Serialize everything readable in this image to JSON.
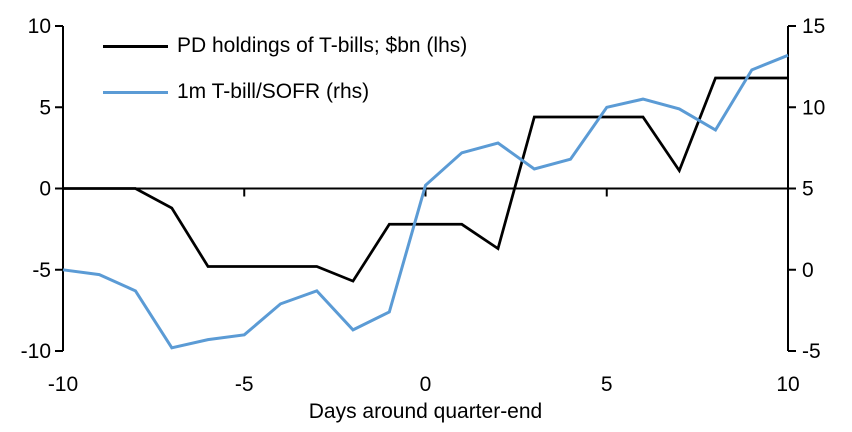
{
  "chart_data": {
    "type": "line",
    "title": "",
    "xlabel": "Days around quarter-end",
    "x": [
      -10,
      -9,
      -8,
      -7,
      -6,
      -5,
      -4,
      -3,
      -2,
      -1,
      0,
      1,
      2,
      3,
      4,
      5,
      6,
      7,
      8,
      9,
      10
    ],
    "series": [
      {
        "name": "PD holdings of T-bills; $bn (lhs)",
        "axis": "lhs",
        "color": "#000000",
        "stroke_width": 2.75,
        "values": [
          0,
          0,
          0,
          -1.2,
          -4.8,
          -4.8,
          -4.8,
          -4.8,
          -5.7,
          -2.2,
          -2.2,
          -2.2,
          -3.7,
          4.4,
          4.4,
          4.4,
          4.4,
          1.1,
          6.8,
          6.8,
          6.8
        ]
      },
      {
        "name": "1m T-bill/SOFR (rhs)",
        "axis": "rhs",
        "color": "#5B9BD5",
        "stroke_width": 3,
        "values": [
          0,
          -0.3,
          -1.3,
          -4.8,
          -4.3,
          -4.0,
          -2.1,
          -1.3,
          -3.7,
          -2.6,
          5.2,
          7.2,
          7.8,
          6.2,
          6.8,
          10.0,
          10.5,
          9.9,
          8.6,
          12.3,
          13.2
        ]
      }
    ],
    "left_axis": {
      "lim": [
        -10,
        10
      ],
      "ticks": [
        10,
        5,
        0,
        -5,
        -10
      ]
    },
    "right_axis": {
      "lim": [
        -5,
        15
      ],
      "ticks": [
        15,
        10,
        5,
        0,
        -5
      ]
    },
    "x_axis": {
      "lim": [
        -10,
        10
      ],
      "tick_labels": [
        -10,
        -5,
        0,
        5,
        10
      ],
      "inner_tick_marks": [
        -5,
        0,
        5
      ]
    },
    "grid": false,
    "legend_position": "top-left",
    "zero_line": true
  }
}
